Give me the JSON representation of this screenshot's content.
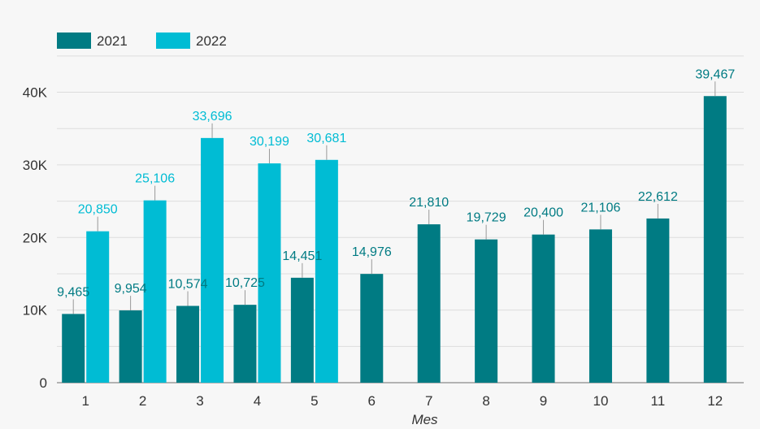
{
  "chart_data": {
    "type": "bar",
    "xlabel": "Mes",
    "ylabel": "",
    "categories": [
      "1",
      "2",
      "3",
      "4",
      "5",
      "6",
      "7",
      "8",
      "9",
      "10",
      "11",
      "12"
    ],
    "ylim": [
      0,
      48000
    ],
    "yticks": [
      0,
      10000,
      20000,
      30000,
      40000
    ],
    "ytick_labels": [
      "0",
      "10K",
      "20K",
      "30K",
      "40K"
    ],
    "grid": true,
    "legend_position": "top-left",
    "series": [
      {
        "name": "2021",
        "color": "#007b83",
        "values": [
          9465,
          9954,
          10574,
          10725,
          14451,
          14976,
          21810,
          19729,
          20400,
          21106,
          22612,
          39467
        ],
        "labels": [
          "9,465",
          "9,954",
          "10,574",
          "10,725",
          "14,451",
          "14,976",
          "21,810",
          "19,729",
          "20,400",
          "21,106",
          "22,612",
          "39,467"
        ]
      },
      {
        "name": "2022",
        "color": "#00bcd4",
        "values": [
          20850,
          25106,
          33696,
          30199,
          30681,
          null,
          null,
          null,
          null,
          null,
          null,
          null
        ],
        "labels": [
          "20,850",
          "25,106",
          "33,696",
          "30,199",
          "30,681",
          null,
          null,
          null,
          null,
          null,
          null,
          null
        ]
      }
    ]
  }
}
